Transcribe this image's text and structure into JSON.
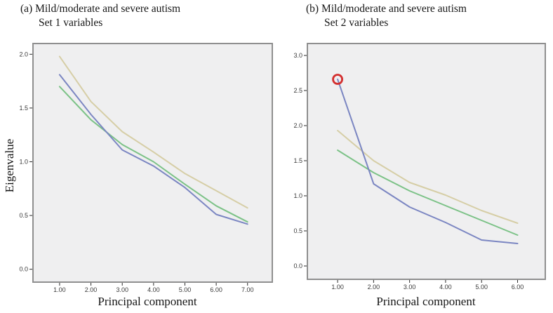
{
  "style": {
    "page_bg": "#ffffff",
    "plot_bg": "#efeff0",
    "plot_border": "#8f8f8f",
    "tick_color": "#2a2a2a",
    "tick_label_color": "#3a3a3a"
  },
  "chart_data": [
    {
      "type": "line",
      "panel": "a",
      "title_lines": [
        "(a) Mild/moderate and severe autism",
        "Set 1 variables"
      ],
      "xlabel": "Principal component",
      "ylabel": "Eigenvalue",
      "x": [
        1,
        2,
        3,
        4,
        5,
        6,
        7
      ],
      "x_tick_labels": [
        "1.00",
        "2.00",
        "3.00",
        "4.00",
        "5.00",
        "6.00",
        "7.00"
      ],
      "y_tick_values": [
        0.0,
        0.5,
        1.0,
        1.5,
        2.0
      ],
      "y_tick_labels": [
        "0.0",
        "0.5",
        "1.0",
        "1.5",
        "2.0"
      ],
      "xlim": [
        0.15,
        7.79
      ],
      "ylim": [
        -0.12,
        2.1
      ],
      "grid": false,
      "legend": "none",
      "series": [
        {
          "name": "tan-line",
          "color": "#d6cea6",
          "values": [
            1.98,
            1.56,
            1.28,
            1.09,
            0.89,
            0.73,
            0.57
          ]
        },
        {
          "name": "green-line",
          "color": "#7cc287",
          "values": [
            1.7,
            1.39,
            1.16,
            1.0,
            0.79,
            0.59,
            0.44
          ]
        },
        {
          "name": "blue-line",
          "color": "#7b86c2",
          "values": [
            1.81,
            1.44,
            1.11,
            0.96,
            0.76,
            0.51,
            0.42
          ]
        }
      ],
      "annotation": null
    },
    {
      "type": "line",
      "panel": "b",
      "title_lines": [
        "(b) Mild/moderate and severe autism",
        "Set 2 variables"
      ],
      "xlabel": "Principal component",
      "ylabel": "",
      "x": [
        1,
        2,
        3,
        4,
        5,
        6
      ],
      "x_tick_labels": [
        "1.00",
        "2.00",
        "3.00",
        "4.00",
        "5.00",
        "6.00"
      ],
      "y_tick_values": [
        0.0,
        0.5,
        1.0,
        1.5,
        2.0,
        2.5,
        3.0
      ],
      "y_tick_labels": [
        "0.0",
        "0.5",
        "1.0",
        "1.5",
        "2.0",
        "2.5",
        "3.0"
      ],
      "xlim": [
        0.16,
        6.77
      ],
      "ylim": [
        -0.19,
        3.17
      ],
      "grid": false,
      "legend": "none",
      "series": [
        {
          "name": "tan-line",
          "color": "#d6cea6",
          "values": [
            1.93,
            1.5,
            1.19,
            1.01,
            0.79,
            0.61
          ]
        },
        {
          "name": "green-line",
          "color": "#7cc287",
          "values": [
            1.65,
            1.33,
            1.07,
            0.86,
            0.65,
            0.44
          ]
        },
        {
          "name": "blue-line",
          "color": "#7b86c2",
          "values": [
            2.66,
            1.17,
            0.84,
            0.62,
            0.37,
            0.32
          ]
        }
      ],
      "annotation": {
        "shape": "circle",
        "x": 1,
        "y": 2.66,
        "color": "#d32f2f"
      }
    }
  ]
}
